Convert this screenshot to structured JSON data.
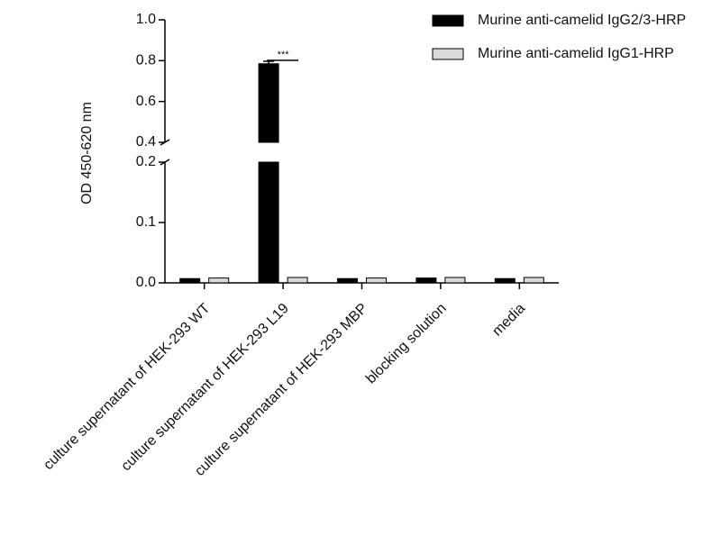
{
  "chart_data": {
    "type": "bar",
    "y_label": "OD 450-620 nm",
    "categories": [
      "culture supernatant of HEK-293 WT",
      "culture supernatant of HEK-293 L19",
      "culture supernatant of HEK-293 MBP",
      "blocking solution",
      "media"
    ],
    "series": [
      {
        "name": "Murine anti-camelid IgG2/3-HRP",
        "color": "#000000",
        "values": [
          0.007,
          0.785,
          0.007,
          0.008,
          0.007
        ],
        "errors": [
          null,
          0.012,
          null,
          null,
          null
        ]
      },
      {
        "name": "Murine anti-camelid IgG1-HRP",
        "color": "#d9d9d9",
        "values": [
          0.008,
          0.009,
          0.008,
          0.009,
          0.009
        ]
      }
    ],
    "ylim": [
      0,
      1.0
    ],
    "axis_break": [
      0.2,
      0.4
    ],
    "yticks": [
      {
        "value": 0,
        "label": "0.0"
      },
      0.1,
      0.2,
      0.4,
      0.6,
      0.8,
      {
        "value": 1.0,
        "label": "1.0"
      }
    ],
    "annotation": "***",
    "legend": "upper right",
    "grid": false
  }
}
